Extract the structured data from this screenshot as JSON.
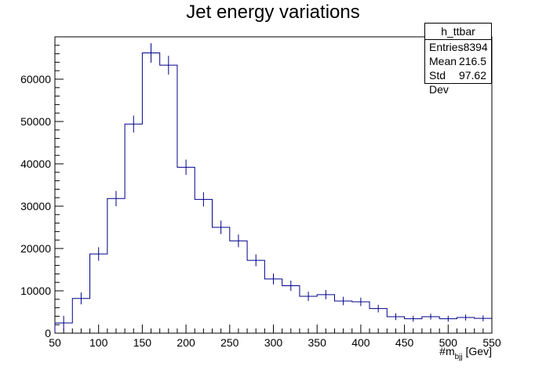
{
  "chart_data": {
    "type": "bar",
    "title": "Jet energy variations",
    "xlabel": "#m_{bjj} [Gev]",
    "xlabel_main": "#m",
    "xlabel_sub": "bjj",
    "xlabel_suffix": " [Gev]",
    "ylabel": "",
    "xlim": [
      50,
      550
    ],
    "ylim": [
      0,
      70000
    ],
    "bin_width": 20,
    "x_ticks": [
      "50",
      "100",
      "150",
      "200",
      "250",
      "300",
      "350",
      "400",
      "450",
      "500",
      "550"
    ],
    "y_ticks": [
      "0",
      "10000",
      "20000",
      "30000",
      "40000",
      "50000",
      "60000"
    ],
    "series": [
      {
        "bin_edges": [
          50,
          70,
          90,
          110,
          130,
          150,
          170,
          190,
          210,
          230,
          250,
          270,
          290,
          310,
          330,
          350,
          370,
          390,
          410,
          430,
          450,
          470,
          490,
          510,
          530,
          550
        ],
        "values": [
          2400,
          8200,
          18700,
          31800,
          49400,
          66200,
          63300,
          39200,
          31600,
          25000,
          21800,
          17200,
          12800,
          11200,
          8700,
          9100,
          7600,
          7400,
          5800,
          3900,
          3400,
          3900,
          3400,
          3700,
          3500
        ],
        "errors": [
          1700,
          1400,
          1600,
          1800,
          2000,
          2300,
          2200,
          1800,
          1700,
          1600,
          1500,
          1400,
          1300,
          1200,
          1100,
          1100,
          1000,
          1000,
          900,
          800,
          700,
          700,
          700,
          700,
          700
        ]
      }
    ],
    "color": "#00008b"
  },
  "stats_box": {
    "name": "h_ttbar",
    "entries_label": "Entries",
    "entries_value": "8394",
    "mean_label": "Mean",
    "mean_value": "216.5",
    "stddev_label": "Std Dev",
    "stddev_value": "97.62"
  }
}
